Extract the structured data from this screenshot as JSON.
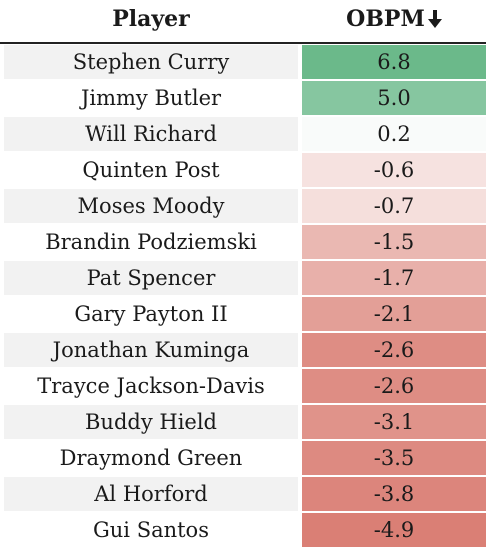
{
  "header": {
    "player_label": "Player",
    "obpm_label": "OBPM"
  },
  "rows": [
    {
      "player": "Stephen Curry",
      "obpm": "6.8",
      "color": "#6bb98a"
    },
    {
      "player": "Jimmy Butler",
      "obpm": "5.0",
      "color": "#86c6a0"
    },
    {
      "player": "Will Richard",
      "obpm": "0.2",
      "color": "#f9fbfa"
    },
    {
      "player": "Quinten Post",
      "obpm": "-0.6",
      "color": "#f6e2e0"
    },
    {
      "player": "Moses Moody",
      "obpm": "-0.7",
      "color": "#f5dfdc"
    },
    {
      "player": "Brandin Podziemski",
      "obpm": "-1.5",
      "color": "#eab8b2"
    },
    {
      "player": "Pat Spencer",
      "obpm": "-1.7",
      "color": "#e8b0aa"
    },
    {
      "player": "Gary Payton II",
      "obpm": "-2.1",
      "color": "#e39f97"
    },
    {
      "player": "Jonathan Kuminga",
      "obpm": "-2.6",
      "color": "#de8d84"
    },
    {
      "player": "Trayce Jackson-Davis",
      "obpm": "-2.6",
      "color": "#de8d84"
    },
    {
      "player": "Buddy Hield",
      "obpm": "-3.1",
      "color": "#e0938a"
    },
    {
      "player": "Draymond Green",
      "obpm": "-3.5",
      "color": "#dd8a81"
    },
    {
      "player": "Al Horford",
      "obpm": "-3.8",
      "color": "#dc857c"
    },
    {
      "player": "Gui Santos",
      "obpm": "-4.9",
      "color": "#da7f75"
    }
  ],
  "icons": {
    "sort": "arrow-down-icon"
  }
}
